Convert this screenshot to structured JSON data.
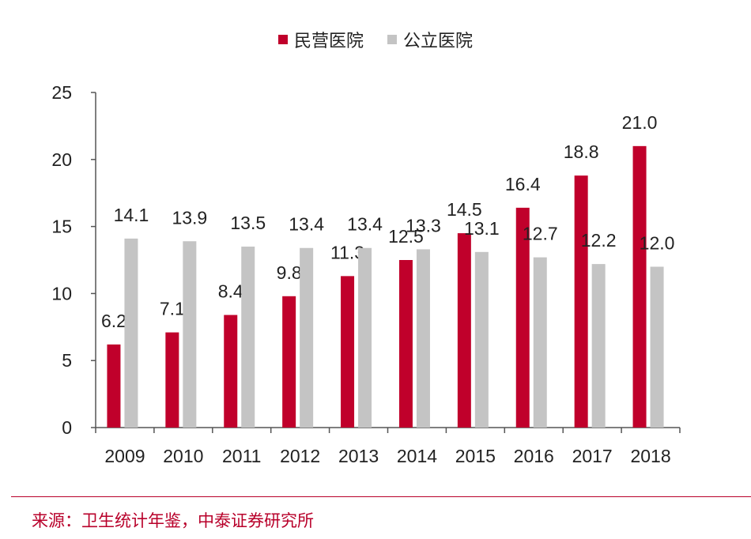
{
  "legend": [
    {
      "name": "民营医院",
      "color": "#c0002b"
    },
    {
      "name": "公立医院",
      "color": "#c4c4c4"
    }
  ],
  "source": "来源：卫生统计年鉴，中泰证券研究所",
  "chart_data": {
    "type": "bar",
    "categories": [
      "2009",
      "2010",
      "2011",
      "2012",
      "2013",
      "2014",
      "2015",
      "2016",
      "2017",
      "2018"
    ],
    "series": [
      {
        "name": "民营医院",
        "color": "#c0002b",
        "values": [
          6.2,
          7.1,
          8.4,
          9.8,
          11.3,
          12.5,
          14.5,
          16.4,
          18.8,
          21.0
        ]
      },
      {
        "name": "公立医院",
        "color": "#c4c4c4",
        "values": [
          14.1,
          13.9,
          13.5,
          13.4,
          13.4,
          13.3,
          13.1,
          12.7,
          12.2,
          12.0
        ]
      }
    ],
    "yticks": [
      "0",
      "5",
      "10",
      "15",
      "20",
      "25"
    ],
    "ylim": [
      0,
      25
    ],
    "title": "",
    "xlabel": "",
    "ylabel": "",
    "grid": false,
    "legend_position": "top"
  }
}
